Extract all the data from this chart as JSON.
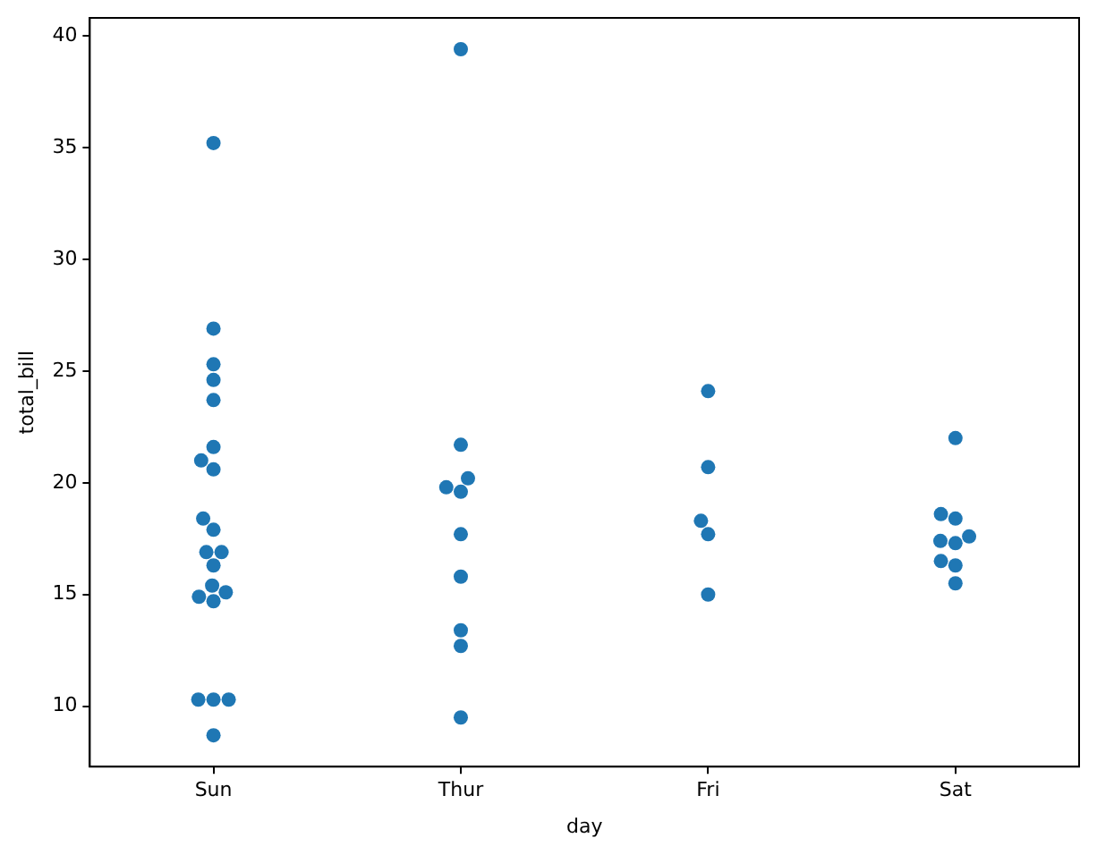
{
  "chart_data": {
    "type": "scatter",
    "xlabel": "day",
    "ylabel": "total_bill",
    "categories": [
      "Sun",
      "Thur",
      "Fri",
      "Sat"
    ],
    "series": [
      {
        "color": "#1f77b4",
        "x": [
          "Sun",
          "Sun",
          "Sun",
          "Sun",
          "Sun",
          "Sun",
          "Sun",
          "Sun",
          "Sun",
          "Sun",
          "Sun",
          "Sun",
          "Sun",
          "Sun",
          "Sun",
          "Sun",
          "Sun",
          "Sun",
          "Sun",
          "Sun",
          "Sun",
          "Thur",
          "Thur",
          "Thur",
          "Thur",
          "Thur",
          "Thur",
          "Thur",
          "Thur",
          "Thur",
          "Thur",
          "Fri",
          "Fri",
          "Fri",
          "Fri",
          "Fri",
          "Sat",
          "Sat",
          "Sat",
          "Sat",
          "Sat",
          "Sat",
          "Sat",
          "Sat",
          "Sat"
        ],
        "values": [
          35.2,
          26.9,
          25.3,
          24.6,
          23.7,
          21.6,
          21.0,
          20.6,
          18.4,
          17.9,
          16.9,
          16.9,
          16.3,
          15.4,
          15.1,
          14.9,
          14.7,
          10.3,
          10.3,
          10.3,
          8.7,
          39.4,
          21.7,
          20.2,
          19.8,
          19.6,
          17.7,
          15.8,
          13.4,
          12.7,
          9.5,
          24.1,
          20.7,
          18.3,
          17.7,
          15.0,
          22.0,
          18.6,
          18.4,
          17.6,
          17.4,
          17.3,
          16.5,
          16.3,
          15.5
        ]
      }
    ],
    "ylim": [
      7.3,
      40.8
    ],
    "yticks": [
      10,
      15,
      20,
      25,
      30,
      35,
      40
    ],
    "grid": false,
    "legend": false,
    "marker": "circle"
  }
}
